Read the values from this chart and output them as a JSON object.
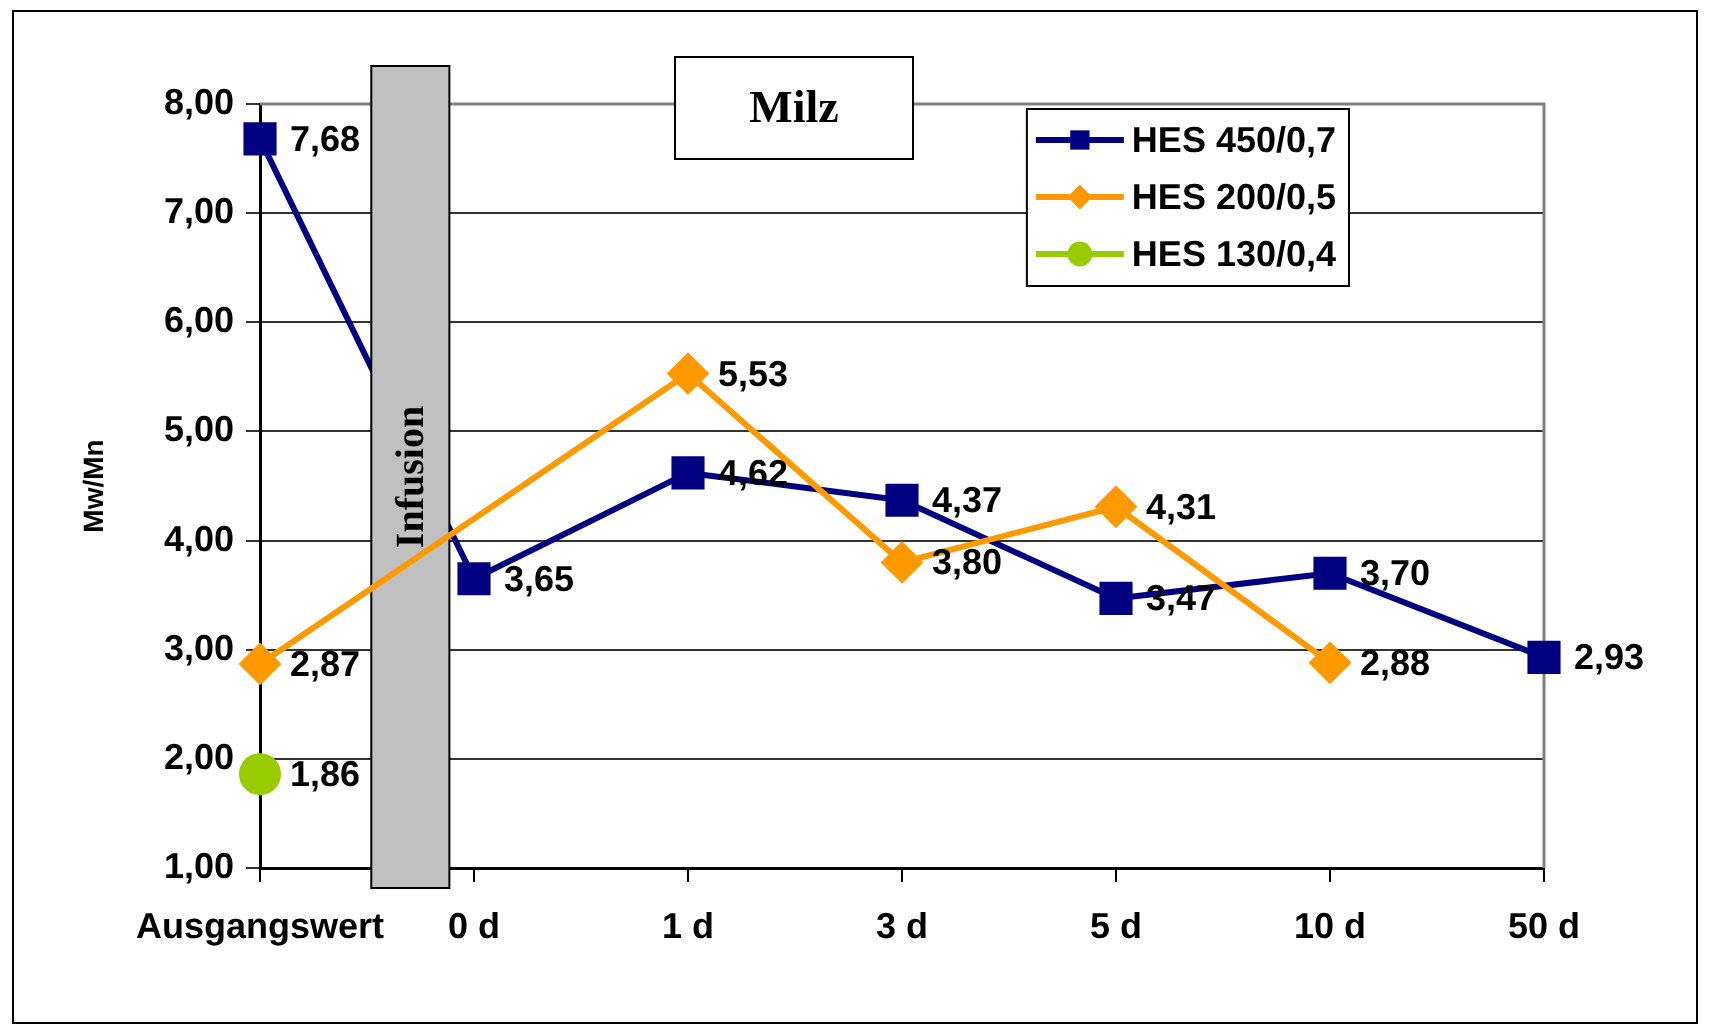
{
  "chart_data": {
    "type": "line",
    "title": "Milz",
    "ylabel": "Mw/Mn",
    "categories": [
      "Ausgangswert",
      "0 d",
      "1 d",
      "3 d",
      "5 d",
      "10 d",
      "50 d"
    ],
    "series": [
      {
        "name": "HES 450/0,7",
        "color": "#000080",
        "marker": "square",
        "values": [
          7.68,
          3.65,
          4.62,
          4.37,
          3.47,
          3.7,
          2.93
        ],
        "value_labels": [
          "7,68",
          "3,65",
          "4,62",
          "4,37",
          "3,47",
          "3,70",
          "2,93"
        ]
      },
      {
        "name": "HES 200/0,5",
        "color": "#ff9900",
        "marker": "diamond",
        "values": [
          2.87,
          null,
          5.53,
          3.8,
          4.31,
          2.88,
          null
        ],
        "value_labels": [
          "2,87",
          null,
          "5,53",
          "3,80",
          "4,31",
          "2,88",
          null
        ]
      },
      {
        "name": "HES 130/0,4",
        "color": "#99cc00",
        "marker": "circle",
        "values": [
          1.86,
          null,
          null,
          null,
          null,
          null,
          null
        ],
        "value_labels": [
          "1,86",
          null,
          null,
          null,
          null,
          null,
          null
        ]
      }
    ],
    "ylim": [
      1,
      8
    ],
    "yticks": [
      {
        "value": 1,
        "label": "1,00"
      },
      {
        "value": 2,
        "label": "2,00"
      },
      {
        "value": 3,
        "label": "3,00"
      },
      {
        "value": 4,
        "label": "4,00"
      },
      {
        "value": 5,
        "label": "5,00"
      },
      {
        "value": 6,
        "label": "6,00"
      },
      {
        "value": 7,
        "label": "7,00"
      },
      {
        "value": 8,
        "label": "8,00"
      }
    ],
    "grid": "y",
    "legend": "top right",
    "bands": [
      {
        "axis": "x",
        "from": "Ausgangswert",
        "to": "0 d",
        "label": "Infusion",
        "color": "#c0c0c0"
      }
    ]
  }
}
